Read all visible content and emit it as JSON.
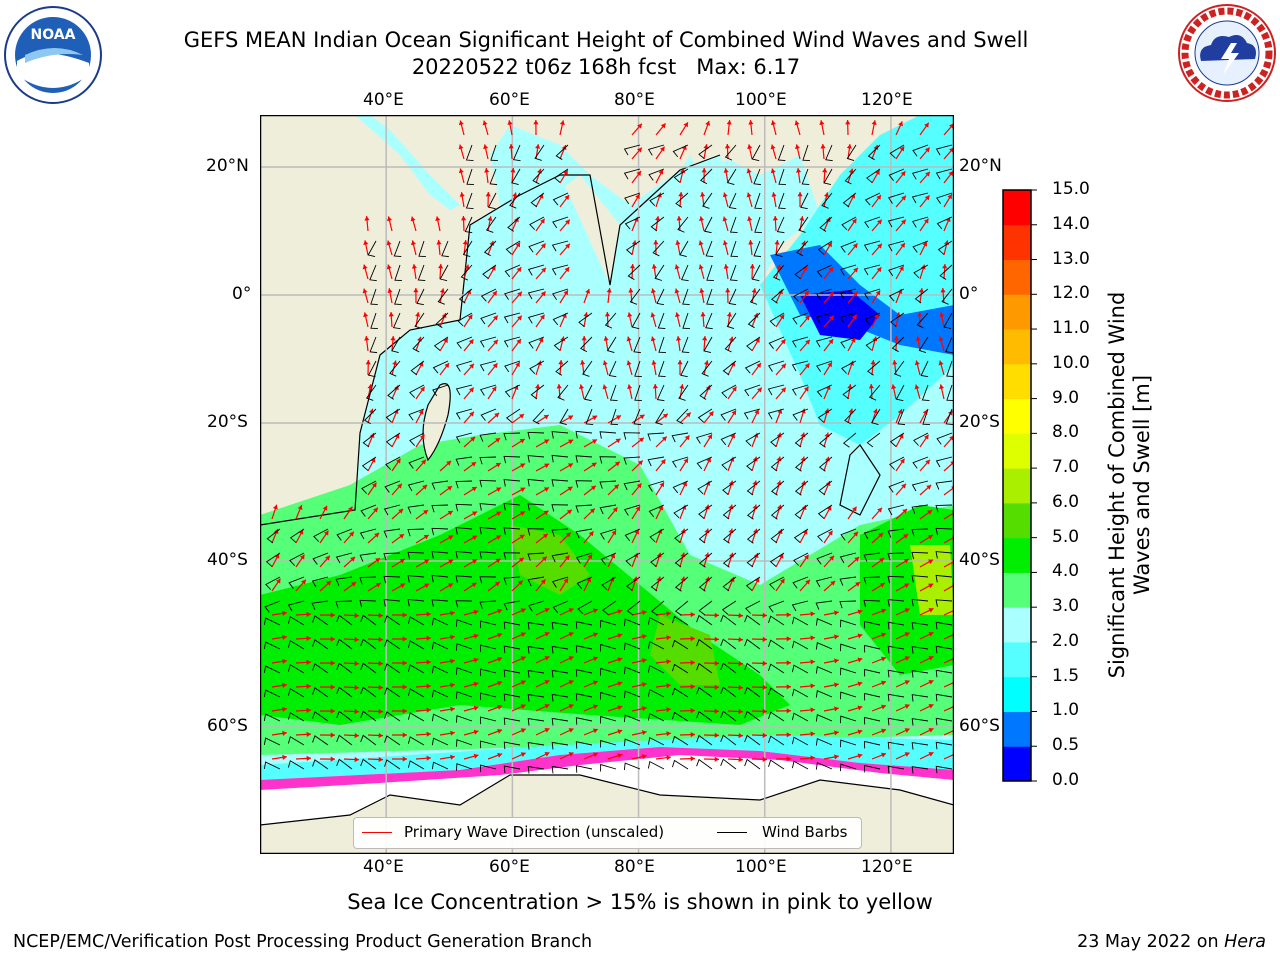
{
  "title_line1": "GEFS MEAN Indian Ocean Significant Height of Combined Wind Waves and Swell",
  "title_line2": "20220522 t06z 168h fcst   Max: 6.17",
  "logos": {
    "left": "NOAA",
    "right": "NATIONAL WEATHER SERVICE"
  },
  "map": {
    "lon_range": [
      20,
      130
    ],
    "lat_range": [
      -88,
      28
    ],
    "lon_ticks": [
      "40°E",
      "60°E",
      "80°E",
      "100°E",
      "120°E"
    ],
    "lat_ticks": [
      "20°N",
      "0°",
      "20°S",
      "40°S",
      "60°S"
    ],
    "gridlines": true,
    "colors": {
      "land": "#efeedb",
      "ice": "#ffffff",
      "ice_edge": "#ff33cc",
      "grid": "#bbbbbb"
    }
  },
  "colorbar": {
    "label": "Significant Height of Combined Wind Waves and Swell [m]",
    "ticks": [
      "0.0",
      "0.5",
      "1.0",
      "1.5",
      "2.0",
      "3.0",
      "4.0",
      "5.0",
      "6.0",
      "7.0",
      "8.0",
      "9.0",
      "10.0",
      "11.0",
      "12.0",
      "13.0",
      "14.0",
      "15.0"
    ],
    "colors": [
      "#0000ff",
      "#0077ff",
      "#00ffff",
      "#55ffff",
      "#aaffff",
      "#55ff77",
      "#00ee00",
      "#55dd00",
      "#aaee00",
      "#ddff00",
      "#ffff00",
      "#ffdd00",
      "#ffbb00",
      "#ff9900",
      "#ff6600",
      "#ff3300",
      "#ff0000"
    ]
  },
  "legend": {
    "wave_direction": "Primary Wave Direction (unscaled)",
    "wind_barbs": "Wind Barbs",
    "wave_color": "#ff0000",
    "barb_color": "#000000"
  },
  "ice_note": "Sea Ice Concentration > 15% is shown in pink to yellow",
  "footer_left": "NCEP/EMC/Verification Post Processing Product Generation Branch",
  "footer_date": "23 May 2022 on ",
  "footer_host": "Hera"
}
